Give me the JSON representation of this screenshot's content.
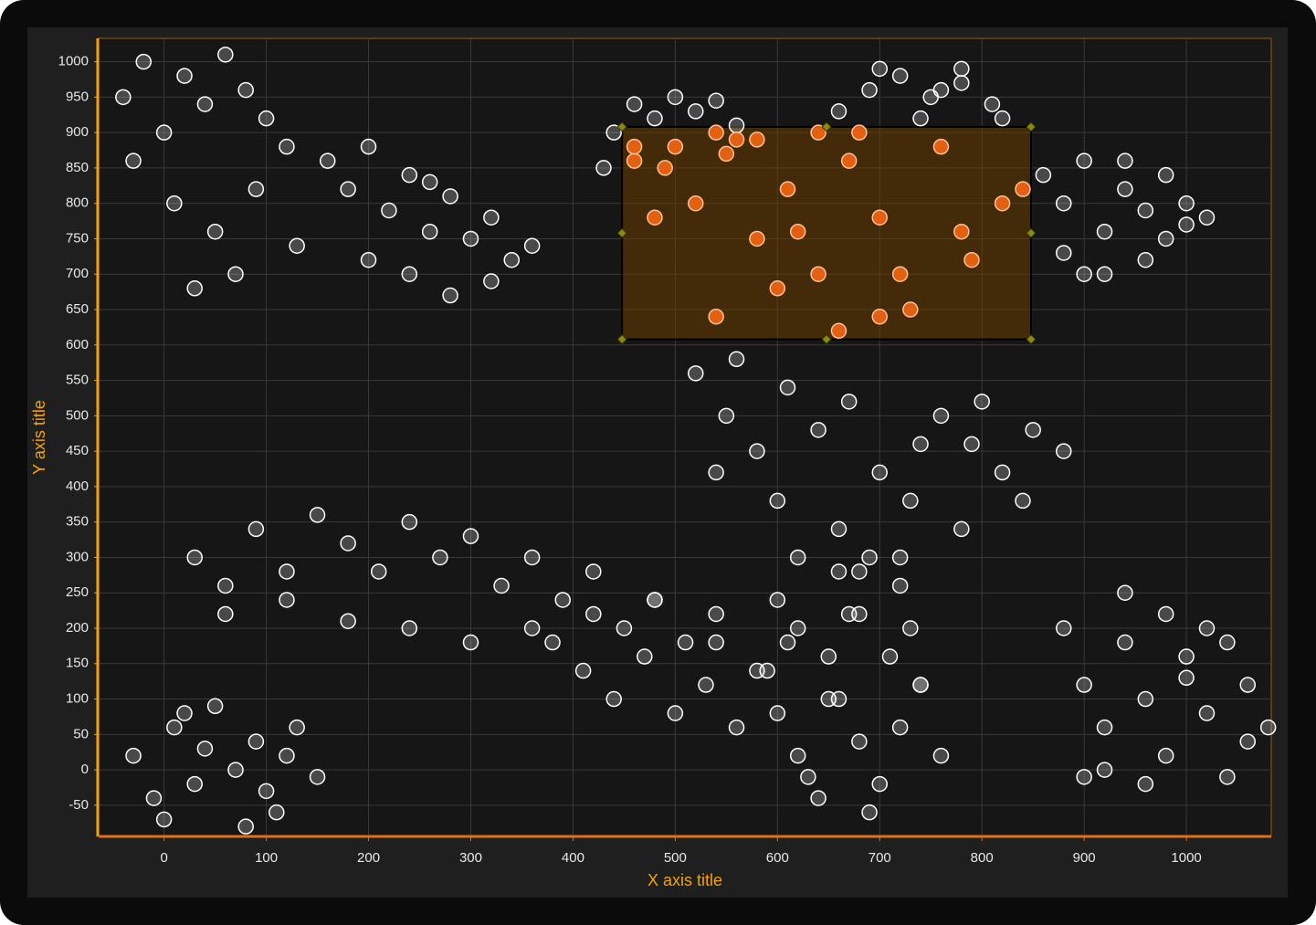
{
  "chart_data": {
    "type": "scatter",
    "x_label": "X axis title",
    "y_label": "Y axis title",
    "x": [
      -40,
      -20,
      0,
      20,
      40,
      60,
      80,
      100,
      120,
      -30,
      10,
      50,
      90,
      130,
      70,
      30,
      160,
      180,
      200,
      220,
      240,
      260,
      280,
      300,
      320,
      340,
      360,
      200,
      240,
      280,
      320,
      260,
      440,
      460,
      480,
      500,
      520,
      540,
      560,
      580,
      460,
      500,
      540,
      430,
      460,
      490,
      520,
      550,
      580,
      610,
      640,
      670,
      700,
      730,
      760,
      790,
      820,
      480,
      540,
      600,
      660,
      720,
      780,
      840,
      560,
      640,
      700,
      620,
      660,
      690,
      720,
      750,
      780,
      810,
      700,
      740,
      780,
      820,
      680,
      760,
      860,
      880,
      900,
      920,
      940,
      960,
      980,
      1000,
      880,
      920,
      960,
      1000,
      900,
      940,
      980,
      1020,
      520,
      550,
      580,
      610,
      640,
      670,
      700,
      730,
      760,
      790,
      820,
      850,
      880,
      540,
      600,
      660,
      720,
      780,
      840,
      560,
      620,
      680,
      740,
      800,
      30,
      60,
      90,
      120,
      150,
      180,
      210,
      240,
      270,
      300,
      330,
      360,
      390,
      420,
      450,
      480,
      510,
      540,
      60,
      120,
      180,
      240,
      300,
      360,
      -30,
      -10,
      10,
      30,
      50,
      70,
      90,
      110,
      130,
      150,
      0,
      40,
      80,
      120,
      20,
      100,
      380,
      410,
      440,
      470,
      500,
      530,
      560,
      590,
      620,
      650,
      680,
      710,
      740,
      420,
      480,
      540,
      600,
      660,
      720,
      690,
      580,
      600,
      620,
      640,
      660,
      680,
      700,
      720,
      740,
      760,
      610,
      650,
      690,
      730,
      630,
      670,
      880,
      900,
      920,
      940,
      960,
      980,
      1000,
      1020,
      1040,
      1060,
      1080,
      900,
      940,
      980,
      1020,
      1060,
      920,
      960,
      1000,
      1040
    ],
    "values": [
      950,
      1000,
      900,
      980,
      940,
      1010,
      960,
      920,
      880,
      860,
      800,
      760,
      820,
      740,
      700,
      680,
      860,
      820,
      880,
      790,
      840,
      760,
      810,
      750,
      780,
      720,
      740,
      720,
      700,
      670,
      690,
      830,
      900,
      940,
      920,
      950,
      930,
      945,
      910,
      890,
      860,
      880,
      900,
      850,
      880,
      850,
      800,
      870,
      750,
      820,
      700,
      860,
      780,
      650,
      880,
      720,
      800,
      780,
      640,
      680,
      620,
      700,
      760,
      820,
      890,
      900,
      640,
      760,
      930,
      960,
      980,
      950,
      970,
      940,
      990,
      920,
      990,
      920,
      900,
      960,
      840,
      800,
      860,
      760,
      820,
      790,
      840,
      770,
      730,
      700,
      720,
      800,
      700,
      860,
      750,
      780,
      560,
      500,
      450,
      540,
      480,
      520,
      420,
      380,
      500,
      460,
      420,
      480,
      450,
      420,
      380,
      340,
      300,
      340,
      380,
      580,
      300,
      280,
      460,
      520,
      300,
      260,
      340,
      280,
      360,
      320,
      280,
      350,
      300,
      330,
      260,
      300,
      240,
      280,
      200,
      240,
      180,
      220,
      220,
      240,
      210,
      200,
      180,
      200,
      20,
      -40,
      60,
      -20,
      90,
      0,
      40,
      -60,
      60,
      -10,
      -70,
      30,
      -80,
      20,
      80,
      -30,
      180,
      140,
      100,
      160,
      80,
      120,
      60,
      140,
      200,
      100,
      220,
      160,
      120,
      220,
      240,
      180,
      240,
      280,
      260,
      300,
      140,
      80,
      20,
      -40,
      100,
      40,
      -20,
      60,
      120,
      20,
      180,
      160,
      -60,
      200,
      -10,
      220,
      200,
      120,
      60,
      180,
      100,
      20,
      160,
      80,
      -10,
      120,
      60,
      -10,
      250,
      220,
      200,
      40,
      0,
      -20,
      130,
      180
    ],
    "color": "#ffffff",
    "selection_color": "#ff6a13",
    "selection": {
      "xlim": [
        448,
        848
      ],
      "ylim": [
        608,
        908
      ]
    },
    "xlim": [
      -64,
      1083
    ],
    "ylim": [
      -94,
      1033
    ],
    "xticks": [
      0,
      100,
      200,
      300,
      400,
      500,
      600,
      700,
      800,
      900,
      1000
    ],
    "yticks": [
      -50,
      0,
      50,
      100,
      150,
      200,
      250,
      300,
      350,
      400,
      450,
      500,
      550,
      600,
      650,
      700,
      750,
      800,
      850,
      900,
      950,
      1000
    ],
    "grid": true
  }
}
